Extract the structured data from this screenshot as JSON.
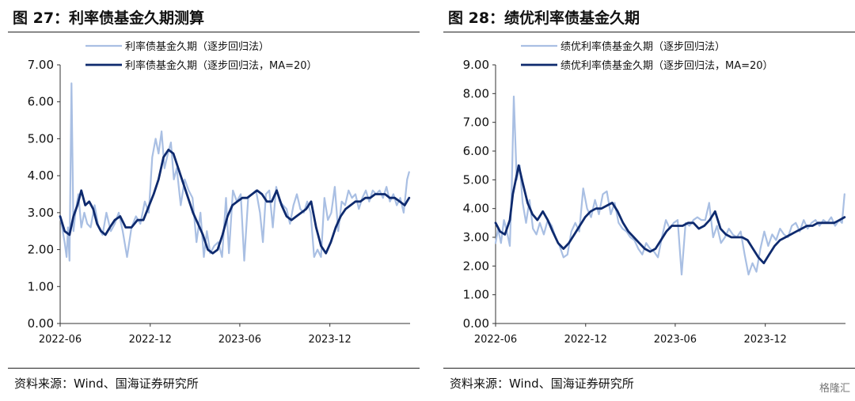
{
  "left": {
    "title": "图 27：利率债基金久期测算",
    "source": "资料来源：Wind、国海证券研究所",
    "chart_data": {
      "type": "line",
      "ylim": [
        0,
        7
      ],
      "yticks": [
        "0.00",
        "1.00",
        "2.00",
        "3.00",
        "4.00",
        "5.00",
        "6.00",
        "7.00"
      ],
      "xlim": [
        "2022-06-01",
        "2024-05-12"
      ],
      "xticks": [
        "2022-06",
        "2022-12",
        "2023-06",
        "2023-12"
      ],
      "grid": false,
      "legend_position": "top",
      "series": [
        {
          "name": "利率债基金久期（逐步回归法）",
          "color": "#a9bfe3",
          "x": [
            "2022-06-01",
            "2022-06-05",
            "2022-06-10",
            "2022-06-14",
            "2022-06-17",
            "2022-06-20",
            "2022-06-24",
            "2022-06-28",
            "2022-07-02",
            "2022-07-08",
            "2022-07-14",
            "2022-07-20",
            "2022-07-26",
            "2022-08-02",
            "2022-08-10",
            "2022-08-18",
            "2022-08-26",
            "2022-09-03",
            "2022-09-12",
            "2022-09-20",
            "2022-09-28",
            "2022-10-06",
            "2022-10-15",
            "2022-10-24",
            "2022-11-02",
            "2022-11-11",
            "2022-11-20",
            "2022-11-28",
            "2022-12-05",
            "2022-12-12",
            "2022-12-18",
            "2022-12-24",
            "2022-12-30",
            "2023-01-06",
            "2023-01-12",
            "2023-01-18",
            "2023-01-24",
            "2023-02-01",
            "2023-02-09",
            "2023-02-17",
            "2023-02-25",
            "2023-03-05",
            "2023-03-13",
            "2023-03-20",
            "2023-03-26",
            "2023-04-02",
            "2023-04-10",
            "2023-04-18",
            "2023-04-26",
            "2023-05-04",
            "2023-05-10",
            "2023-05-18",
            "2023-05-26",
            "2023-06-03",
            "2023-06-10",
            "2023-06-18",
            "2023-06-26",
            "2023-07-04",
            "2023-07-12",
            "2023-07-18",
            "2023-07-24",
            "2023-07-31",
            "2023-08-07",
            "2023-08-14",
            "2023-08-21",
            "2023-08-28",
            "2023-09-04",
            "2023-09-11",
            "2023-09-18",
            "2023-09-25",
            "2023-10-02",
            "2023-10-09",
            "2023-10-16",
            "2023-10-23",
            "2023-10-30",
            "2023-11-06",
            "2023-11-13",
            "2023-11-20",
            "2023-11-27",
            "2023-12-04",
            "2023-12-11",
            "2023-12-18",
            "2023-12-25",
            "2024-01-01",
            "2024-01-08",
            "2024-01-15",
            "2024-01-22",
            "2024-01-29",
            "2024-02-05",
            "2024-02-12",
            "2024-02-19",
            "2024-02-26",
            "2024-03-04",
            "2024-03-11",
            "2024-03-18",
            "2024-03-25",
            "2024-04-01",
            "2024-04-08",
            "2024-04-15",
            "2024-04-22",
            "2024-04-29",
            "2024-05-06",
            "2024-05-10"
          ],
          "values": [
            2.9,
            2.6,
            2.2,
            1.8,
            2.6,
            1.7,
            6.5,
            2.5,
            3.0,
            3.5,
            2.6,
            3.0,
            2.7,
            2.6,
            3.2,
            2.6,
            2.4,
            3.0,
            2.5,
            2.7,
            3.0,
            2.5,
            1.8,
            2.6,
            2.9,
            2.7,
            3.3,
            3.0,
            4.5,
            5.0,
            4.6,
            5.2,
            4.2,
            4.6,
            4.9,
            3.9,
            4.2,
            3.2,
            3.9,
            3.6,
            3.4,
            2.2,
            3.0,
            1.8,
            2.5,
            1.9,
            2.1,
            2.2,
            1.8,
            3.4,
            1.9,
            3.6,
            3.3,
            3.5,
            1.7,
            3.4,
            3.5,
            3.6,
            3.0,
            2.2,
            3.5,
            3.6,
            2.6,
            3.7,
            3.3,
            3.2,
            3.1,
            2.7,
            3.2,
            3.5,
            3.1,
            3.0,
            3.3,
            3.0,
            1.8,
            2.0,
            1.8,
            3.4,
            2.8,
            3.0,
            3.7,
            2.5,
            3.3,
            3.2,
            3.6,
            3.4,
            3.5,
            3.1,
            3.4,
            3.6,
            3.3,
            3.6,
            3.5,
            3.6,
            3.4,
            3.7,
            3.3,
            3.5,
            3.2,
            3.4,
            3.0,
            3.9,
            4.1
          ]
        },
        {
          "name": "利率债基金久期（逐步回归法，MA=20）",
          "color": "#0e2a6e",
          "x": [
            "2022-06-01",
            "2022-06-10",
            "2022-06-20",
            "2022-06-28",
            "2022-07-06",
            "2022-07-14",
            "2022-07-22",
            "2022-07-30",
            "2022-08-07",
            "2022-08-15",
            "2022-08-23",
            "2022-09-01",
            "2022-09-10",
            "2022-09-20",
            "2022-10-01",
            "2022-10-12",
            "2022-10-24",
            "2022-11-05",
            "2022-11-17",
            "2022-11-29",
            "2022-12-08",
            "2022-12-18",
            "2022-12-28",
            "2023-01-07",
            "2023-01-17",
            "2023-01-27",
            "2023-02-06",
            "2023-02-16",
            "2023-02-26",
            "2023-03-08",
            "2023-03-18",
            "2023-03-28",
            "2023-04-07",
            "2023-04-17",
            "2023-04-27",
            "2023-05-07",
            "2023-05-17",
            "2023-05-27",
            "2023-06-06",
            "2023-06-16",
            "2023-06-26",
            "2023-07-06",
            "2023-07-16",
            "2023-07-26",
            "2023-08-05",
            "2023-08-15",
            "2023-08-25",
            "2023-09-04",
            "2023-09-14",
            "2023-09-24",
            "2023-10-04",
            "2023-10-14",
            "2023-10-24",
            "2023-11-03",
            "2023-11-13",
            "2023-11-23",
            "2023-12-03",
            "2023-12-13",
            "2023-12-23",
            "2024-01-02",
            "2024-01-12",
            "2024-01-22",
            "2024-02-01",
            "2024-02-11",
            "2024-02-21",
            "2024-03-02",
            "2024-03-12",
            "2024-03-22",
            "2024-04-01",
            "2024-04-11",
            "2024-04-21",
            "2024-05-01",
            "2024-05-10"
          ],
          "values": [
            2.9,
            2.5,
            2.4,
            2.9,
            3.2,
            3.6,
            3.2,
            3.3,
            3.1,
            2.7,
            2.5,
            2.4,
            2.6,
            2.8,
            2.9,
            2.6,
            2.6,
            2.8,
            2.8,
            3.2,
            3.5,
            3.9,
            4.5,
            4.7,
            4.6,
            4.2,
            3.8,
            3.4,
            3.0,
            2.7,
            2.4,
            2.0,
            1.9,
            2.0,
            2.4,
            2.9,
            3.2,
            3.3,
            3.4,
            3.4,
            3.5,
            3.6,
            3.5,
            3.3,
            3.3,
            3.6,
            3.2,
            2.9,
            2.8,
            2.9,
            3.0,
            3.1,
            3.3,
            2.6,
            2.1,
            1.9,
            2.2,
            2.6,
            2.9,
            3.1,
            3.2,
            3.3,
            3.3,
            3.4,
            3.4,
            3.5,
            3.5,
            3.5,
            3.4,
            3.4,
            3.3,
            3.2,
            3.4
          ]
        }
      ]
    }
  },
  "right": {
    "title": "图 28：绩优利率债基金久期",
    "source": "资料来源：Wind、国海证券研究所",
    "watermark": "格隆汇",
    "chart_data": {
      "type": "line",
      "ylim": [
        0,
        9
      ],
      "yticks": [
        "0.00",
        "1.00",
        "2.00",
        "3.00",
        "4.00",
        "5.00",
        "6.00",
        "7.00",
        "8.00",
        "9.00"
      ],
      "xlim": [
        "2022-06-01",
        "2024-05-12"
      ],
      "xticks": [
        "2022-06",
        "2022-12",
        "2023-06",
        "2023-12"
      ],
      "grid": false,
      "legend_position": "top",
      "series": [
        {
          "name": "绩优利率债基金久期（逐步回归法）",
          "color": "#a9bfe3",
          "x": [
            "2022-06-01",
            "2022-06-06",
            "2022-06-12",
            "2022-06-18",
            "2022-06-24",
            "2022-06-30",
            "2022-07-04",
            "2022-07-08",
            "2022-07-14",
            "2022-07-20",
            "2022-07-26",
            "2022-08-02",
            "2022-08-09",
            "2022-08-16",
            "2022-08-23",
            "2022-08-30",
            "2022-09-07",
            "2022-09-15",
            "2022-09-23",
            "2022-10-01",
            "2022-10-09",
            "2022-10-17",
            "2022-10-25",
            "2022-11-02",
            "2022-11-10",
            "2022-11-18",
            "2022-11-26",
            "2022-12-04",
            "2022-12-12",
            "2022-12-20",
            "2022-12-28",
            "2023-01-05",
            "2023-01-13",
            "2023-01-21",
            "2023-01-29",
            "2023-02-06",
            "2023-02-14",
            "2023-02-22",
            "2023-03-02",
            "2023-03-10",
            "2023-03-18",
            "2023-03-26",
            "2023-04-03",
            "2023-04-11",
            "2023-04-19",
            "2023-04-27",
            "2023-05-05",
            "2023-05-13",
            "2023-05-21",
            "2023-05-29",
            "2023-06-06",
            "2023-06-14",
            "2023-06-22",
            "2023-06-30",
            "2023-07-08",
            "2023-07-16",
            "2023-07-24",
            "2023-08-01",
            "2023-08-09",
            "2023-08-17",
            "2023-08-25",
            "2023-09-02",
            "2023-09-10",
            "2023-09-18",
            "2023-09-26",
            "2023-10-04",
            "2023-10-12",
            "2023-10-20",
            "2023-10-28",
            "2023-11-05",
            "2023-11-13",
            "2023-11-21",
            "2023-11-29",
            "2023-12-07",
            "2023-12-15",
            "2023-12-23",
            "2023-12-31",
            "2024-01-08",
            "2024-01-16",
            "2024-01-24",
            "2024-02-01",
            "2024-02-09",
            "2024-02-17",
            "2024-02-25",
            "2024-03-04",
            "2024-03-12",
            "2024-03-20",
            "2024-03-28",
            "2024-04-05",
            "2024-04-13",
            "2024-04-21",
            "2024-04-29",
            "2024-05-05",
            "2024-05-10"
          ],
          "values": [
            2.8,
            3.3,
            2.8,
            3.6,
            3.2,
            2.7,
            4.8,
            7.9,
            5.0,
            5.5,
            4.2,
            3.5,
            4.3,
            3.3,
            3.1,
            3.5,
            3.1,
            3.6,
            3.4,
            3.0,
            2.7,
            2.3,
            2.4,
            3.2,
            3.5,
            3.2,
            4.7,
            4.0,
            3.7,
            4.3,
            3.8,
            4.5,
            4.6,
            3.8,
            4.2,
            3.5,
            3.3,
            3.2,
            3.0,
            2.9,
            2.6,
            2.4,
            2.8,
            2.6,
            2.5,
            2.3,
            3.0,
            3.6,
            3.3,
            3.5,
            3.6,
            1.7,
            3.5,
            3.4,
            3.6,
            3.7,
            3.6,
            3.6,
            4.2,
            3.0,
            3.4,
            2.8,
            3.0,
            3.3,
            3.1,
            3.0,
            3.2,
            2.4,
            1.7,
            2.1,
            1.8,
            2.6,
            3.2,
            2.7,
            3.1,
            2.9,
            3.3,
            3.1,
            3.0,
            3.4,
            3.5,
            3.2,
            3.6,
            3.3,
            3.5,
            3.6,
            3.4,
            3.6,
            3.5,
            3.7,
            3.4,
            3.6,
            3.5,
            4.5
          ]
        },
        {
          "name": "绩优利率债基金久期（逐步回归法，MA=20）",
          "color": "#0e2a6e",
          "x": [
            "2022-06-01",
            "2022-06-10",
            "2022-06-20",
            "2022-06-30",
            "2022-07-06",
            "2022-07-12",
            "2022-07-18",
            "2022-07-26",
            "2022-08-05",
            "2022-08-15",
            "2022-08-25",
            "2022-09-05",
            "2022-09-15",
            "2022-09-25",
            "2022-10-06",
            "2022-10-17",
            "2022-10-28",
            "2022-11-08",
            "2022-11-19",
            "2022-11-30",
            "2022-12-11",
            "2022-12-22",
            "2023-01-02",
            "2023-01-13",
            "2023-01-24",
            "2023-02-04",
            "2023-02-15",
            "2023-02-26",
            "2023-03-09",
            "2023-03-20",
            "2023-03-31",
            "2023-04-11",
            "2023-04-22",
            "2023-05-03",
            "2023-05-14",
            "2023-05-25",
            "2023-06-05",
            "2023-06-16",
            "2023-06-27",
            "2023-07-08",
            "2023-07-19",
            "2023-07-30",
            "2023-08-10",
            "2023-08-21",
            "2023-09-01",
            "2023-09-12",
            "2023-09-23",
            "2023-10-04",
            "2023-10-15",
            "2023-10-26",
            "2023-11-06",
            "2023-11-17",
            "2023-11-28",
            "2023-12-09",
            "2023-12-20",
            "2023-12-31",
            "2024-01-11",
            "2024-01-22",
            "2024-02-02",
            "2024-02-13",
            "2024-02-24",
            "2024-03-06",
            "2024-03-17",
            "2024-03-28",
            "2024-04-08",
            "2024-04-19",
            "2024-04-30",
            "2024-05-10"
          ],
          "values": [
            3.5,
            3.2,
            3.1,
            3.6,
            4.5,
            5.0,
            5.5,
            4.9,
            4.2,
            3.8,
            3.6,
            3.9,
            3.6,
            3.2,
            2.8,
            2.6,
            2.8,
            3.1,
            3.4,
            3.7,
            3.9,
            4.0,
            4.0,
            4.1,
            4.2,
            3.9,
            3.5,
            3.2,
            3.0,
            2.8,
            2.6,
            2.5,
            2.6,
            2.9,
            3.2,
            3.4,
            3.4,
            3.4,
            3.5,
            3.5,
            3.3,
            3.4,
            3.6,
            3.9,
            3.3,
            3.1,
            3.0,
            3.0,
            3.0,
            2.9,
            2.6,
            2.3,
            2.1,
            2.4,
            2.7,
            2.9,
            3.0,
            3.1,
            3.2,
            3.3,
            3.4,
            3.4,
            3.5,
            3.5,
            3.5,
            3.5,
            3.6,
            3.7
          ]
        }
      ]
    }
  }
}
